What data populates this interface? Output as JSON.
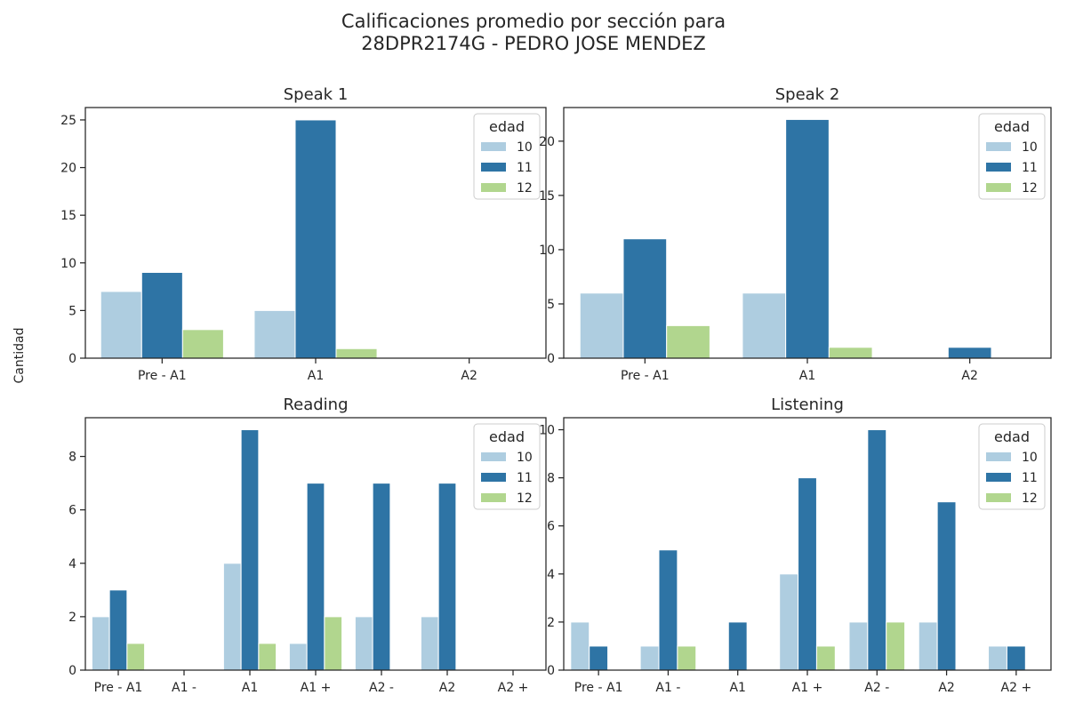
{
  "suptitle": [
    "Calificaciones promedio por sección para",
    "28DPR2174G - PEDRO JOSE MENDEZ"
  ],
  "ylabel": "Cantidad",
  "colors": {
    "10": "#aecde0",
    "11": "#2e74a5",
    "12": "#b1d68e"
  },
  "chart_data": [
    {
      "type": "bar",
      "title": "Speak 1",
      "categories": [
        "Pre - A1",
        "A1",
        "A2"
      ],
      "series": [
        {
          "name": "10",
          "values": [
            7,
            5,
            0
          ]
        },
        {
          "name": "11",
          "values": [
            9,
            25,
            0
          ]
        },
        {
          "name": "12",
          "values": [
            3,
            1,
            0
          ]
        }
      ],
      "ylim": [
        0,
        26.3
      ],
      "yticks": [
        0,
        5,
        10,
        15,
        20,
        25
      ],
      "legend": {
        "title": "edad",
        "position": "top-right"
      }
    },
    {
      "type": "bar",
      "title": "Speak 2",
      "categories": [
        "Pre - A1",
        "A1",
        "A2"
      ],
      "series": [
        {
          "name": "10",
          "values": [
            6,
            6,
            0
          ]
        },
        {
          "name": "11",
          "values": [
            11,
            22,
            1
          ]
        },
        {
          "name": "12",
          "values": [
            3,
            1,
            0
          ]
        }
      ],
      "ylim": [
        0,
        23.1
      ],
      "yticks": [
        0,
        5,
        10,
        15,
        20
      ],
      "legend": {
        "title": "edad",
        "position": "top-right"
      }
    },
    {
      "type": "bar",
      "title": "Reading",
      "categories": [
        "Pre - A1",
        "A1 -",
        "A1",
        "A1 +",
        "A2 -",
        "A2",
        "A2 +"
      ],
      "series": [
        {
          "name": "10",
          "values": [
            2,
            0,
            4,
            1,
            2,
            2,
            0
          ]
        },
        {
          "name": "11",
          "values": [
            3,
            0,
            9,
            7,
            7,
            7,
            0
          ]
        },
        {
          "name": "12",
          "values": [
            1,
            0,
            1,
            2,
            0,
            0,
            0
          ]
        }
      ],
      "ylim": [
        0,
        9.45
      ],
      "yticks": [
        0,
        2,
        4,
        6,
        8
      ],
      "legend": {
        "title": "edad",
        "position": "top-right"
      }
    },
    {
      "type": "bar",
      "title": "Listening",
      "categories": [
        "Pre - A1",
        "A1 -",
        "A1",
        "A1 +",
        "A2 -",
        "A2",
        "A2 +"
      ],
      "series": [
        {
          "name": "10",
          "values": [
            2,
            1,
            0,
            4,
            2,
            2,
            1
          ]
        },
        {
          "name": "11",
          "values": [
            1,
            5,
            2,
            8,
            10,
            7,
            1
          ]
        },
        {
          "name": "12",
          "values": [
            0,
            1,
            0,
            1,
            2,
            0,
            0
          ]
        }
      ],
      "ylim": [
        0,
        10.5
      ],
      "yticks": [
        0,
        2,
        4,
        6,
        8,
        10
      ],
      "legend": {
        "title": "edad",
        "position": "top-right"
      }
    }
  ]
}
